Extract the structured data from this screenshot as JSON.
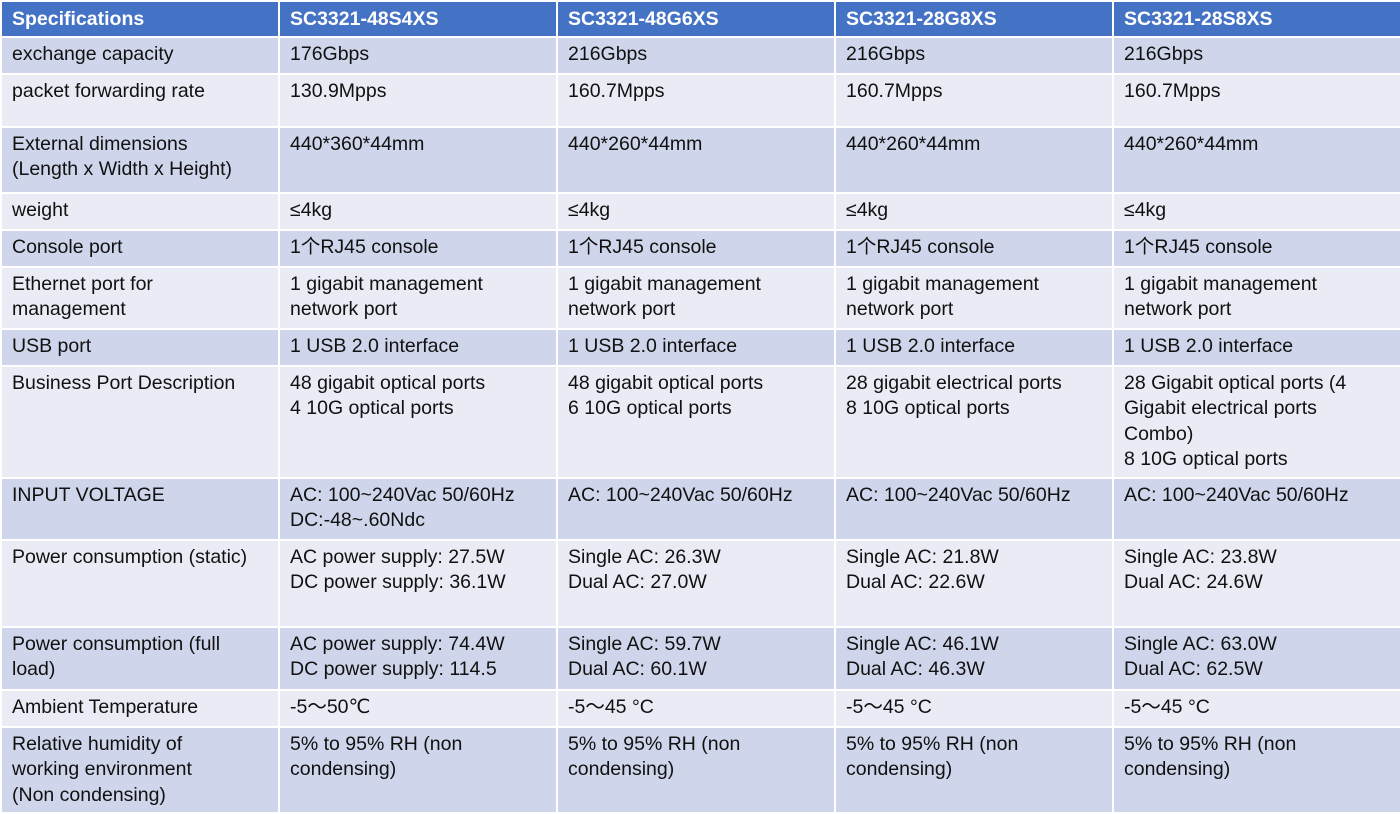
{
  "table": {
    "headers": [
      "Specifications",
      "SC3321-48S4XS",
      "SC3321-48G6XS",
      "SC3321-28G8XS",
      "SC3321-28S8XS"
    ],
    "rows": [
      [
        "exchange capacity",
        "176Gbps",
        "216Gbps",
        "216Gbps",
        "216Gbps"
      ],
      [
        "packet forwarding rate",
        "130.9Mpps",
        "160.7Mpps",
        "160.7Mpps",
        "160.7Mpps"
      ],
      [
        "External dimensions\n(Length x Width x Height)",
        "440*360*44mm",
        "440*260*44mm",
        "440*260*44mm",
        "440*260*44mm"
      ],
      [
        "weight",
        "≤4kg",
        "≤4kg",
        "≤4kg",
        "≤4kg"
      ],
      [
        "Console port",
        "1个RJ45 console",
        "1个RJ45 console",
        "1个RJ45 console",
        "1个RJ45 console"
      ],
      [
        "Ethernet port for\nmanagement",
        "1 gigabit management\nnetwork port",
        "1 gigabit management\nnetwork port",
        "1 gigabit management\nnetwork port",
        "1 gigabit management\nnetwork port"
      ],
      [
        "USB port",
        "1 USB 2.0 interface",
        "1 USB 2.0 interface",
        "1 USB 2.0 interface",
        "1 USB 2.0 interface"
      ],
      [
        "Business Port Description",
        "48 gigabit optical ports\n4 10G optical ports",
        "48 gigabit optical ports\n6 10G optical ports",
        "28 gigabit electrical ports\n8 10G optical ports",
        "28 Gigabit optical ports (4\nGigabit electrical ports\nCombo)\n8 10G optical ports"
      ],
      [
        "INPUT VOLTAGE",
        "AC: 100~240Vac 50/60Hz\nDC:-48~.60Ndc",
        "AC: 100~240Vac 50/60Hz",
        "AC: 100~240Vac 50/60Hz",
        "AC: 100~240Vac 50/60Hz"
      ],
      [
        "Power consumption (static)",
        "AC power supply: 27.5W\nDC power supply: 36.1W",
        "Single AC: 26.3W\nDual AC: 27.0W",
        "Single AC: 21.8W\nDual AC: 22.6W",
        "Single AC: 23.8W\nDual AC: 24.6W"
      ],
      [
        "Power consumption (full\nload)",
        "AC power supply: 74.4W\nDC power supply: 114.5",
        "Single AC: 59.7W\nDual AC: 60.1W",
        "Single AC: 46.1W\nDual AC: 46.3W",
        "Single AC: 63.0W\nDual AC: 62.5W"
      ],
      [
        "Ambient Temperature",
        "-5～50℃",
        "-5～45 °C",
        "-5～45 °C",
        "-5～45 °C"
      ],
      [
        "Relative humidity of\nworking environment\n(Non condensing)",
        "5% to 95% RH (non\ncondensing)",
        "5% to 95% RH (non\ncondensing)",
        "5% to 95% RH (non\ncondensing)",
        "5% to 95% RH (non\ncondensing)"
      ]
    ]
  }
}
